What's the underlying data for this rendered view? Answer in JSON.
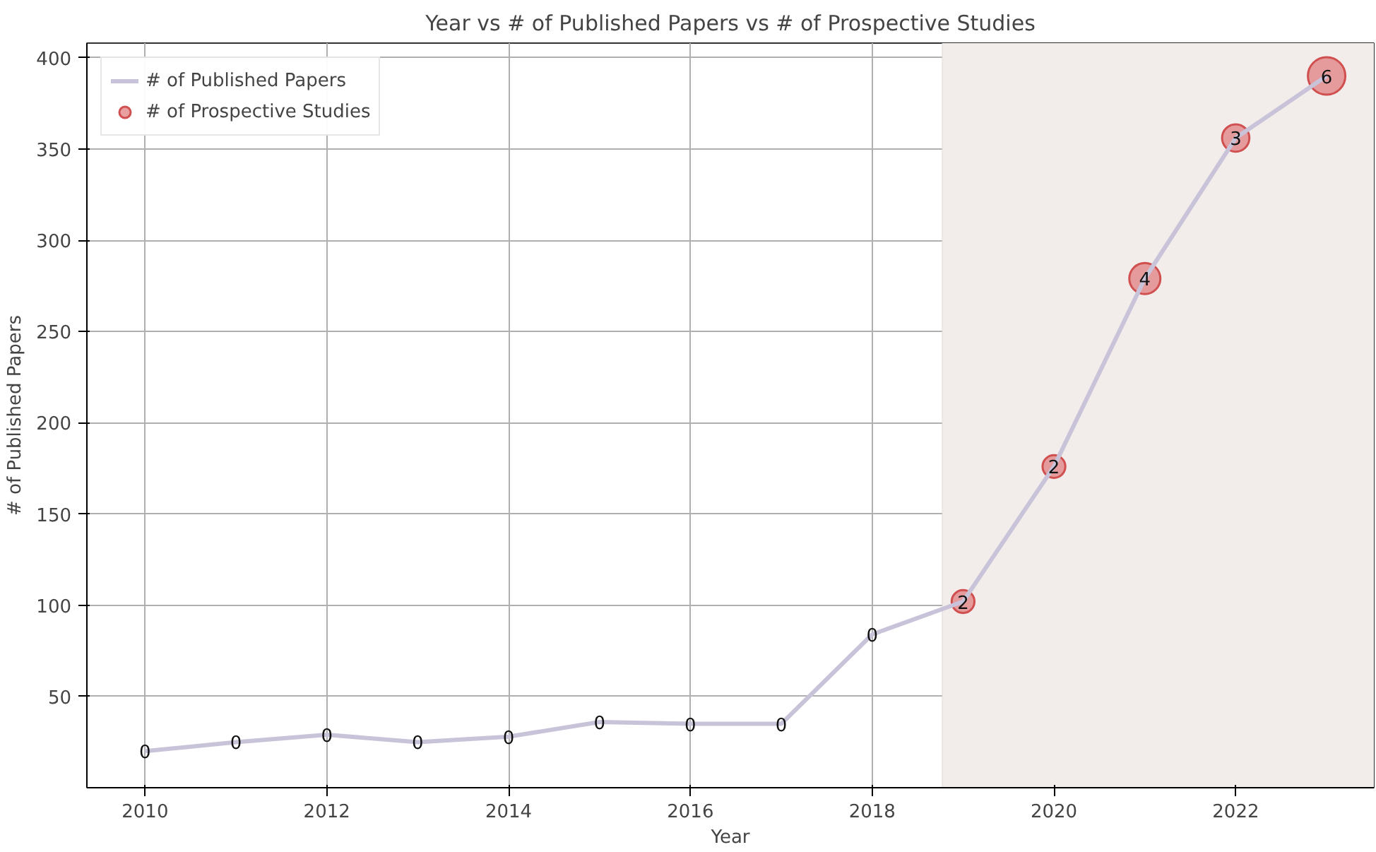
{
  "chart_data": {
    "type": "line",
    "title": "Year vs # of Published Papers vs # of Prospective Studies",
    "xlabel": "Year",
    "ylabel": "# of Published Papers",
    "x": [
      2010,
      2011,
      2012,
      2013,
      2014,
      2015,
      2016,
      2017,
      2018,
      2019,
      2020,
      2021,
      2022,
      2023
    ],
    "series": [
      {
        "name": "# of Published Papers",
        "color": "#c9c3d9",
        "values": [
          20,
          25,
          29,
          25,
          28,
          36,
          35,
          35,
          84,
          102,
          176,
          279,
          356,
          390
        ]
      },
      {
        "name": "# of Prospective Studies",
        "type": "bubble",
        "color": "#e08080",
        "x": [
          2019,
          2020,
          2021,
          2022,
          2023
        ],
        "values": [
          102,
          176,
          279,
          356,
          390
        ],
        "sizes": [
          2,
          2,
          4,
          3,
          6
        ],
        "value_labels": [
          "2",
          "2",
          "4",
          "3",
          "6"
        ]
      }
    ],
    "annotations": [
      {
        "text": "0",
        "x": 2010,
        "y": 20
      },
      {
        "text": "0",
        "x": 2011,
        "y": 25
      },
      {
        "text": "0",
        "x": 2012,
        "y": 29
      },
      {
        "text": "0",
        "x": 2013,
        "y": 25
      },
      {
        "text": "0",
        "x": 2014,
        "y": 28
      },
      {
        "text": "0",
        "x": 2015,
        "y": 36
      },
      {
        "text": "0",
        "x": 2016,
        "y": 35
      },
      {
        "text": "0",
        "x": 2017,
        "y": 35
      },
      {
        "text": "0",
        "x": 2018,
        "y": 84
      }
    ],
    "xlim": [
      2009.36,
      2023.52
    ],
    "ylim": [
      0,
      408
    ],
    "xticks": [
      2010,
      2012,
      2014,
      2016,
      2018,
      2020,
      2022
    ],
    "yticks": [
      50,
      100,
      150,
      200,
      250,
      300,
      350,
      400
    ],
    "bands": [
      {
        "axis": "x",
        "from": 2018.77,
        "to": 2023.52,
        "color": "#f2ecea"
      }
    ],
    "grid": true,
    "legend": "top left"
  }
}
